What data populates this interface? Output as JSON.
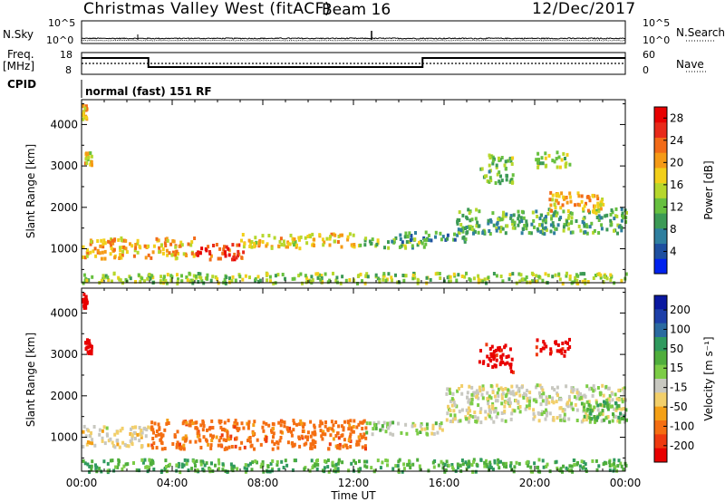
{
  "header": {
    "station": "Christmas Valley West (fitACF)",
    "beam": "Beam 16",
    "date": "12/Dec/2017"
  },
  "strip_labels": {
    "n_sky": "N.Sky",
    "n_search": "N.Search",
    "freq": "Freq.",
    "freq_unit": "[MHz]",
    "nave": "Nave",
    "cpid": "CPID",
    "mode": "normal (fast) 151 RF",
    "noise_top": "10^5",
    "noise_bottom": "10^0",
    "freq_top": "18",
    "freq_bottom": "8",
    "nave_top": "60",
    "nave_bottom": "0"
  },
  "colors": {
    "power_scale": [
      "#0022ee",
      "#1e4fa0",
      "#2f7f9f",
      "#3c9a55",
      "#67c03f",
      "#b6d72c",
      "#f2cf1a",
      "#f59a16",
      "#f26b18",
      "#e82a1a",
      "#e80000"
    ],
    "velocity_scale": [
      "#e80000",
      "#ee3a10",
      "#f46e12",
      "#f4a016",
      "#f2cf6a",
      "#c8c8c0",
      "#7ccc46",
      "#4fae3c",
      "#2f9a5e",
      "#2a6aa0",
      "#1d3fa8",
      "#0a18a0"
    ]
  },
  "chart_data": [
    {
      "type": "heatmap",
      "name": "power",
      "ylabel": "Slant Range [km]",
      "xlabel": "Time UT",
      "x_ticks": [
        "00:00",
        "04:00",
        "08:00",
        "12:00",
        "16:00",
        "20:00",
        "00:00"
      ],
      "y_ticks": [
        1000,
        2000,
        3000,
        4000
      ],
      "ylim": [
        180,
        4600
      ],
      "xlim_hours": [
        0,
        24
      ],
      "colorbar_label": "Power [dB]",
      "colorbar_ticks": [
        4,
        8,
        12,
        16,
        20,
        24,
        28
      ],
      "colorbar_range": [
        0,
        30
      ],
      "echo_regions": [
        {
          "t0": 0.0,
          "t1": 0.2,
          "r0": 4150,
          "r1": 4500,
          "value": 20
        },
        {
          "t0": 0.1,
          "t1": 0.4,
          "r0": 3050,
          "r1": 3400,
          "value": 18
        },
        {
          "t0": 0.0,
          "t1": 5.0,
          "r0": 800,
          "r1": 1300,
          "value": 20
        },
        {
          "t0": 5.0,
          "t1": 7.2,
          "r0": 760,
          "r1": 1150,
          "value": 27
        },
        {
          "t0": 7.0,
          "t1": 12.0,
          "r0": 1050,
          "r1": 1400,
          "value": 18
        },
        {
          "t0": 12.0,
          "t1": 15.2,
          "r0": 1050,
          "r1": 1300,
          "value": 12
        },
        {
          "t0": 14.0,
          "t1": 17.0,
          "r0": 1200,
          "r1": 1450,
          "value": 8
        },
        {
          "t0": 16.5,
          "t1": 24.0,
          "r0": 1400,
          "r1": 2000,
          "value": 10
        },
        {
          "t0": 20.5,
          "t1": 23.0,
          "r0": 1900,
          "r1": 2400,
          "value": 20
        },
        {
          "t0": 17.5,
          "t1": 19.0,
          "r0": 2600,
          "r1": 3300,
          "value": 12
        },
        {
          "t0": 20.0,
          "t1": 21.5,
          "r0": 3000,
          "r1": 3400,
          "value": 14
        },
        {
          "t0": 0.0,
          "t1": 24.0,
          "r0": 200,
          "r1": 450,
          "value": 14
        }
      ]
    },
    {
      "type": "heatmap",
      "name": "velocity",
      "ylabel": "Slant Range [km]",
      "xlabel": "Time UT",
      "x_ticks": [
        "00:00",
        "04:00",
        "08:00",
        "12:00",
        "16:00",
        "20:00",
        "00:00"
      ],
      "y_ticks": [
        1000,
        2000,
        3000,
        4000
      ],
      "ylim": [
        180,
        4600
      ],
      "xlim_hours": [
        0,
        24
      ],
      "colorbar_label": "Velocity [m s⁻¹]",
      "colorbar_ticks": [
        "200",
        "100",
        "50",
        "15",
        "-15",
        "-50",
        "-100",
        "-200"
      ],
      "echo_regions": [
        {
          "t0": 0.0,
          "t1": 0.2,
          "r0": 4150,
          "r1": 4500,
          "value": -200
        },
        {
          "t0": 0.1,
          "t1": 0.4,
          "r0": 3050,
          "r1": 3400,
          "value": -200
        },
        {
          "t0": 0.0,
          "t1": 3.0,
          "r0": 800,
          "r1": 1300,
          "value": -15
        },
        {
          "t0": 3.0,
          "t1": 12.5,
          "r0": 750,
          "r1": 1450,
          "value": -100
        },
        {
          "t0": 12.5,
          "t1": 16.0,
          "r0": 1100,
          "r1": 1400,
          "value": 15
        },
        {
          "t0": 16.0,
          "t1": 24.0,
          "r0": 1400,
          "r1": 2300,
          "value": 0
        },
        {
          "t0": 22.0,
          "t1": 24.0,
          "r0": 1400,
          "r1": 1900,
          "value": 50
        },
        {
          "t0": 17.5,
          "t1": 19.0,
          "r0": 2600,
          "r1": 3300,
          "value": -200
        },
        {
          "t0": 20.0,
          "t1": 21.5,
          "r0": 3000,
          "r1": 3400,
          "value": -200
        },
        {
          "t0": 0.0,
          "t1": 24.0,
          "r0": 200,
          "r1": 500,
          "value": 50
        }
      ]
    }
  ]
}
